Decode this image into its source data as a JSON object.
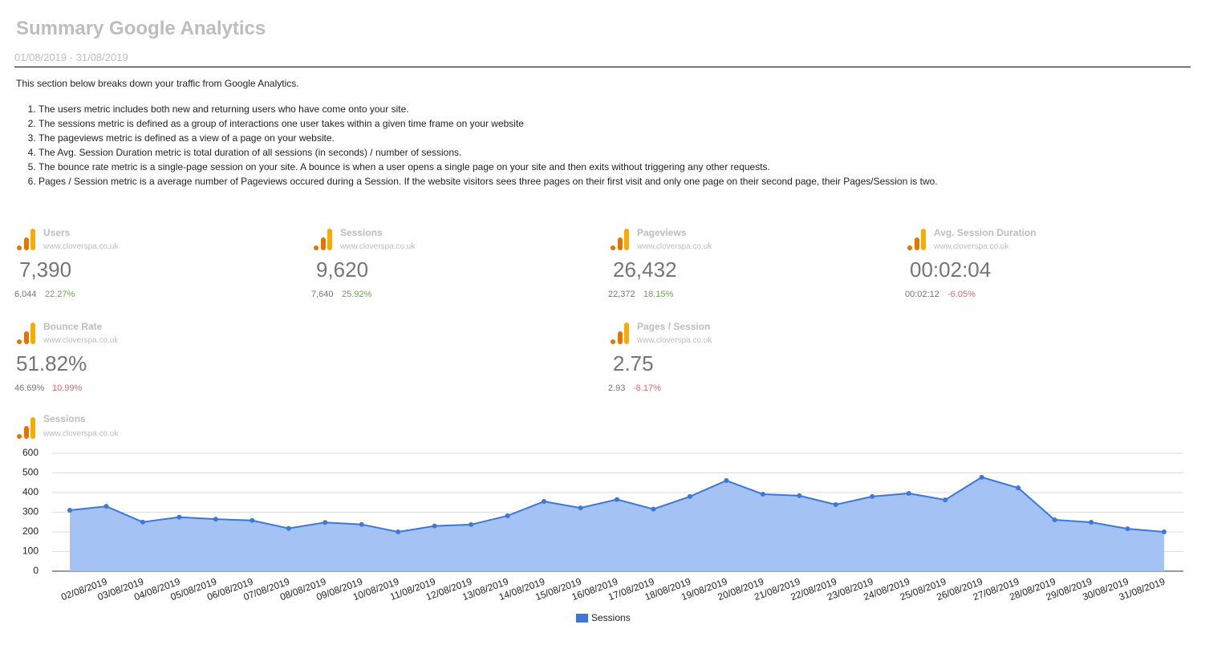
{
  "header": {
    "title": "Summary Google Analytics",
    "date_range": "01/08/2019 - 31/08/2019"
  },
  "intro": "This section below breaks down your traffic from Google Analytics.",
  "notes": [
    "The users metric includes both new and returning users who have come onto your site.",
    "The sessions metric is defined as a group of interactions one user takes within a given time frame on your website",
    "The pageviews metric is defined as a view of a page on your website.",
    "The Avg. Session Duration metric is total duration of all sessions (in seconds) / number of sessions.",
    "The bounce rate metric is a single-page session on your site. A bounce is when a user opens a single page on your site and then exits without triggering any other requests.",
    "Pages / Session metric is a average number of Pageviews occured during a Session. If the website visitors sees three pages on their first visit and only one page on their second page, their Pages/Session is two."
  ],
  "metrics": [
    {
      "label": "Users",
      "site": "www.cloverspa.co.uk",
      "value": "7,390",
      "previous": "6,044",
      "change": "22.27%",
      "change_color": "#6aa84f"
    },
    {
      "label": "Sessions",
      "site": "www.cloverspa.co.uk",
      "value": "9,620",
      "previous": "7,640",
      "change": "25.92%",
      "change_color": "#6aa84f"
    },
    {
      "label": "Pageviews",
      "site": "www.cloverspa.co.uk",
      "value": "26,432",
      "previous": "22,372",
      "change": "18.15%",
      "change_color": "#6aa84f"
    },
    {
      "label": "Avg. Session Duration",
      "site": "www.cloverspa.co.uk",
      "value": "00:02:04",
      "previous": "00:02:12",
      "change": "-6.05%",
      "change_color": "#e06666"
    },
    {
      "label": "Bounce Rate",
      "site": "www.cloverspa.co.uk",
      "value": "51.82%",
      "previous": "46.69%",
      "change": "10.99%",
      "change_color": "#e06666"
    },
    {
      "label": "Pages / Session",
      "site": "www.cloverspa.co.uk",
      "value": "2.75",
      "previous": "2.93",
      "change": "-6.17%",
      "change_color": "#e06666"
    }
  ],
  "chart_data": {
    "type": "area",
    "title": "Sessions",
    "subtitle": "www.cloverspa.co.uk",
    "categories": [
      null,
      "02/08/2019",
      "03/08/2019",
      "04/08/2019",
      "05/08/2019",
      "06/08/2019",
      "07/08/2019",
      "08/08/2019",
      "09/08/2019",
      "10/08/2019",
      "11/08/2019",
      "12/08/2019",
      "13/08/2019",
      "14/08/2019",
      "15/08/2019",
      "16/08/2019",
      "17/08/2019",
      "18/08/2019",
      "19/08/2019",
      "20/08/2019",
      "21/08/2019",
      "22/08/2019",
      "23/08/2019",
      "24/08/2019",
      "25/08/2019",
      "26/08/2019",
      "27/08/2019",
      "28/08/2019",
      "29/08/2019",
      "30/08/2019",
      "31/08/2019"
    ],
    "series": [
      {
        "name": "Sessions",
        "color": "#3c78d8",
        "fill": "#a4c2f4",
        "values": [
          310,
          330,
          250,
          275,
          265,
          258,
          218,
          248,
          238,
          200,
          230,
          237,
          282,
          355,
          322,
          365,
          316,
          380,
          461,
          392,
          384,
          339,
          380,
          396,
          363,
          478,
          424,
          261,
          249,
          216,
          200
        ]
      }
    ],
    "ylim": [
      0,
      600
    ],
    "yticks": [
      0,
      100,
      200,
      300,
      400,
      500,
      600
    ],
    "grid": true,
    "legend": "bottom"
  }
}
